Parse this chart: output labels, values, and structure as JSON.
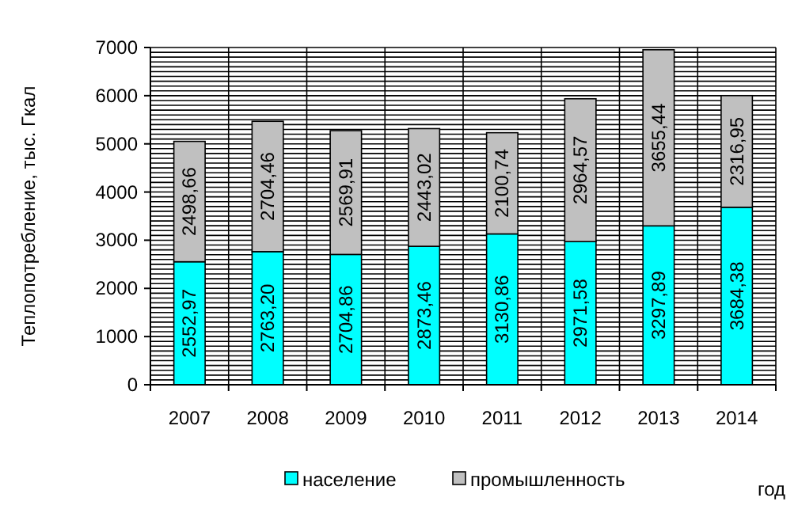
{
  "chart_data": {
    "type": "bar",
    "stacked": true,
    "xlabel": "год",
    "ylabel": "Теплопотребление, тыс. Гкал",
    "categories": [
      "2007",
      "2008",
      "2009",
      "2010",
      "2011",
      "2012",
      "2013",
      "2014"
    ],
    "series": [
      {
        "name": "население",
        "color": "#00ffff",
        "values": [
          2552.97,
          2763.2,
          2704.86,
          2873.46,
          3130.86,
          2971.58,
          3297.89,
          3684.38
        ],
        "value_labels": [
          "2552,97",
          "2763,20",
          "2704,86",
          "2873,46",
          "3130,86",
          "2971,58",
          "3297,89",
          "3684,38"
        ]
      },
      {
        "name": "промышленность",
        "color": "#c0c0c0",
        "values": [
          2498.66,
          2704.46,
          2569.91,
          2443.02,
          2100.74,
          2964.57,
          3655.44,
          2316.95
        ],
        "value_labels": [
          "2498,66",
          "2704,46",
          "2569,91",
          "2443,02",
          "2100,74",
          "2964,57",
          "3655,44",
          "2316,95"
        ]
      }
    ],
    "ylim": [
      0,
      7000
    ],
    "yticks": [
      0,
      {
        "value": 100,
        "label": null
      },
      {
        "value": 200,
        "label": null
      },
      {
        "value": 300,
        "label": null
      },
      {
        "value": 400,
        "label": null
      },
      {
        "value": 500,
        "label": null
      },
      {
        "value": 600,
        "label": null
      },
      {
        "value": 700,
        "label": null
      },
      {
        "value": 800,
        "label": null
      },
      {
        "value": 900,
        "label": null
      },
      1000,
      {
        "value": 1100,
        "label": null
      },
      {
        "value": 1200,
        "label": null
      },
      {
        "value": 1300,
        "label": null
      },
      {
        "value": 1400,
        "label": null
      },
      {
        "value": 1500,
        "label": null
      },
      {
        "value": 1600,
        "label": null
      },
      {
        "value": 1700,
        "label": null
      },
      {
        "value": 1800,
        "label": null
      },
      {
        "value": 1900,
        "label": null
      },
      2000,
      {
        "value": 2100,
        "label": null
      },
      {
        "value": 2200,
        "label": null
      },
      {
        "value": 2300,
        "label": null
      },
      {
        "value": 2400,
        "label": null
      },
      {
        "value": 2500,
        "label": null
      },
      {
        "value": 2600,
        "label": null
      },
      {
        "value": 2700,
        "label": null
      },
      {
        "value": 2800,
        "label": null
      },
      {
        "value": 2900,
        "label": null
      },
      3000,
      {
        "value": 3100,
        "label": null
      },
      {
        "value": 3200,
        "label": null
      },
      {
        "value": 3300,
        "label": null
      },
      {
        "value": 3400,
        "label": null
      },
      {
        "value": 3500,
        "label": null
      },
      {
        "value": 3600,
        "label": null
      },
      {
        "value": 3700,
        "label": null
      },
      {
        "value": 3800,
        "label": null
      },
      {
        "value": 3900,
        "label": null
      },
      4000,
      {
        "value": 4100,
        "label": null
      },
      {
        "value": 4200,
        "label": null
      },
      {
        "value": 4300,
        "label": null
      },
      {
        "value": 4400,
        "label": null
      },
      {
        "value": 4500,
        "label": null
      },
      {
        "value": 4600,
        "label": null
      },
      {
        "value": 4700,
        "label": null
      },
      {
        "value": 4800,
        "label": null
      },
      {
        "value": 4900,
        "label": null
      },
      5000,
      {
        "value": 5100,
        "label": null
      },
      {
        "value": 5200,
        "label": null
      },
      {
        "value": 5300,
        "label": null
      },
      {
        "value": 5400,
        "label": null
      },
      {
        "value": 5500,
        "label": null
      },
      {
        "value": 5600,
        "label": null
      },
      {
        "value": 5700,
        "label": null
      },
      {
        "value": 5800,
        "label": null
      },
      {
        "value": 5900,
        "label": null
      },
      6000,
      {
        "value": 6100,
        "label": null
      },
      {
        "value": 6200,
        "label": null
      },
      {
        "value": 6300,
        "label": null
      },
      {
        "value": 6400,
        "label": null
      },
      {
        "value": 6500,
        "label": null
      },
      {
        "value": 6600,
        "label": null
      },
      {
        "value": 6700,
        "label": null
      },
      {
        "value": 6800,
        "label": null
      },
      {
        "value": 6900,
        "label": null
      },
      7000
    ],
    "grid": true,
    "legend": "bottom"
  }
}
